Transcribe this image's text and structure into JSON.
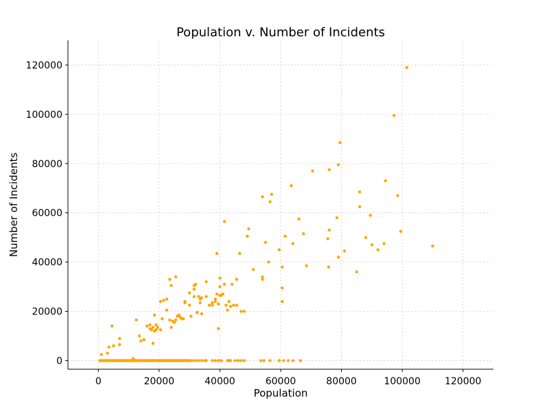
{
  "chart_data": {
    "type": "scatter",
    "title": "Population v. Number of Incidents",
    "xlabel": "Population",
    "ylabel": "Number of Incidents",
    "xlim": [
      -10000,
      130000
    ],
    "ylim": [
      -3500,
      130000
    ],
    "xticks": [
      0,
      20000,
      40000,
      60000,
      80000,
      100000,
      120000
    ],
    "yticks": [
      0,
      20000,
      40000,
      60000,
      80000,
      100000,
      120000
    ],
    "grid": true,
    "point_color": "#ffa500",
    "series": [
      {
        "x": [
          101500,
          97300,
          79500,
          79000,
          76000,
          70500,
          63500,
          57000,
          56500,
          54000,
          49500,
          49000,
          41500,
          39000,
          59500,
          60500,
          61500,
          64000,
          66000,
          67500,
          46500,
          40000,
          35500,
          45500,
          56000,
          55000,
          51000,
          54000,
          54000,
          60500,
          60500,
          68500,
          75500,
          76000,
          75800,
          78500,
          79000,
          81000,
          85000,
          86000,
          86000,
          88000,
          89500,
          90000,
          92000,
          94000,
          94500,
          98500,
          99500,
          110000,
          41500,
          44000,
          45500,
          47000,
          48000,
          42500,
          43500,
          41000,
          40500,
          40000,
          39000,
          38500,
          37500,
          36500,
          35500,
          34000,
          33500,
          32500,
          32000,
          31500,
          30000,
          28500,
          28000,
          27000,
          26000,
          25500,
          25000,
          24500,
          24000,
          23500,
          21000,
          20500,
          19500,
          19000,
          18500,
          18000,
          17500,
          17000,
          16000,
          15000,
          14000,
          13500,
          12500,
          11500,
          7000,
          7000,
          5000,
          4500,
          3500,
          3000,
          1000,
          34000,
          33500,
          37500,
          38500,
          39500,
          39500,
          40000,
          42000,
          43000,
          44500,
          25500,
          26500,
          27500,
          28500,
          30000,
          30500,
          31500,
          31500,
          32500,
          33000,
          24000,
          23500,
          22500,
          21500,
          18500,
          19000,
          18000,
          17000,
          22500,
          20500
        ],
        "y": [
          119000,
          99500,
          88500,
          79500,
          77500,
          77000,
          71000,
          67500,
          64500,
          66500,
          53500,
          50500,
          56500,
          43500,
          45000,
          38000,
          50500,
          47500,
          57500,
          51500,
          43500,
          33500,
          32000,
          33000,
          40000,
          48000,
          37000,
          34000,
          33000,
          24000,
          29500,
          38500,
          49500,
          53000,
          38000,
          58000,
          42000,
          44500,
          36000,
          62500,
          68500,
          50000,
          59000,
          47000,
          45000,
          47500,
          73000,
          67000,
          52500,
          46500,
          31000,
          31000,
          22500,
          20000,
          20000,
          20500,
          22000,
          27000,
          26500,
          30000,
          27000,
          24000,
          23500,
          22500,
          26000,
          25500,
          25000,
          19500,
          31000,
          29000,
          27500,
          23500,
          17000,
          17500,
          18000,
          16500,
          15500,
          16000,
          13500,
          16500,
          17000,
          12500,
          13500,
          14500,
          12000,
          13500,
          12500,
          13000,
          14000,
          8500,
          8000,
          10000,
          16500,
          800,
          9000,
          6500,
          6000,
          14000,
          5500,
          3000,
          2500,
          19000,
          23500,
          22500,
          25000,
          23000,
          13000,
          26500,
          22500,
          24000,
          22500,
          34000,
          18500,
          17000,
          24000,
          22500,
          18000,
          30500,
          26000,
          19500,
          26000,
          30500,
          33000,
          25000,
          24500,
          18500,
          12500,
          7000,
          14500,
          20500,
          24000
        ]
      }
    ],
    "baseline_points": {
      "y": 0,
      "x": [
        500,
        800,
        1200,
        1500,
        1800,
        2200,
        2600,
        3000,
        3400,
        3800,
        4200,
        4600,
        5000,
        5400,
        5800,
        6200,
        6600,
        7000,
        7400,
        7800,
        8200,
        8600,
        9000,
        9400,
        9800,
        10200,
        10600,
        11000,
        11400,
        11800,
        12200,
        12600,
        13000,
        13400,
        13800,
        14200,
        14600,
        15000,
        15400,
        15800,
        16200,
        16600,
        17000,
        17400,
        17800,
        18200,
        18600,
        19000,
        19400,
        19800,
        20200,
        20600,
        21000,
        21400,
        21800,
        22200,
        22600,
        23000,
        23400,
        23800,
        24200,
        24600,
        25000,
        25400,
        25800,
        26200,
        26600,
        27000,
        27400,
        27800,
        28200,
        28600,
        29000,
        29400,
        29800,
        30200,
        31000,
        32000,
        33000,
        34000,
        35000,
        35500,
        37500,
        38500,
        39500,
        40500,
        42500,
        43000,
        43500,
        45000,
        46000,
        47000,
        48000,
        53500,
        54500,
        56500,
        59500,
        61000,
        62500,
        64000,
        66500
      ]
    }
  }
}
